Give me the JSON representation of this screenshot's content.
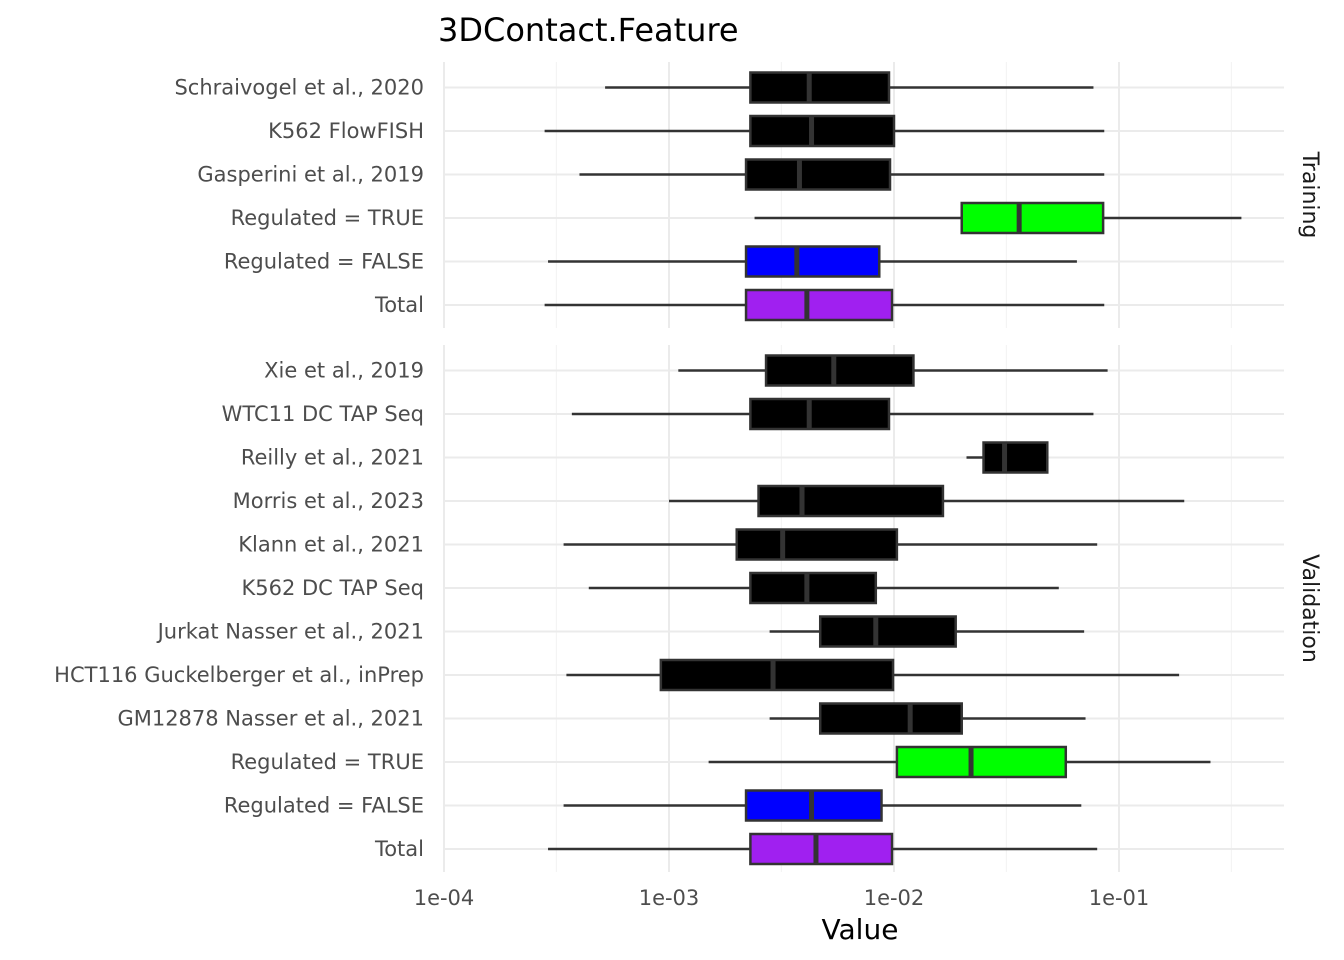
{
  "chart_data": {
    "type": "boxplot",
    "title": "3DContact.Feature",
    "xlabel": "Value",
    "x_scale": "log10",
    "xlim": [
      0.0001,
      0.5
    ],
    "x_ticks": [
      {
        "value": 0.0001,
        "label": "1e-04"
      },
      {
        "value": 0.001,
        "label": "1e-03"
      },
      {
        "value": 0.01,
        "label": "1e-02"
      },
      {
        "value": 0.1,
        "label": "1e-01"
      }
    ],
    "grid": true,
    "facets": [
      {
        "label": "Training",
        "groups": [
          {
            "name": "Schraivogel et al., 2020",
            "color": "#000000",
            "min": 0.00052,
            "q1": 0.0023,
            "median": 0.0042,
            "q3": 0.0095,
            "max": 0.077
          },
          {
            "name": "K562 FlowFISH",
            "color": "#000000",
            "min": 0.00028,
            "q1": 0.0023,
            "median": 0.0043,
            "q3": 0.01,
            "max": 0.086
          },
          {
            "name": "Gasperini et al., 2019",
            "color": "#000000",
            "min": 0.0004,
            "q1": 0.0022,
            "median": 0.0038,
            "q3": 0.0096,
            "max": 0.086
          },
          {
            "name": "Regulated = TRUE",
            "color": "#00ff00",
            "min": 0.0024,
            "q1": 0.02,
            "median": 0.036,
            "q3": 0.085,
            "max": 0.35
          },
          {
            "name": "Regulated = FALSE",
            "color": "#0000ff",
            "min": 0.00029,
            "q1": 0.0022,
            "median": 0.0037,
            "q3": 0.0086,
            "max": 0.065
          },
          {
            "name": "Total",
            "color": "#a020f0",
            "min": 0.00028,
            "q1": 0.0022,
            "median": 0.0041,
            "q3": 0.0098,
            "max": 0.086
          }
        ]
      },
      {
        "label": "Validation",
        "groups": [
          {
            "name": "Xie et al., 2019",
            "color": "#000000",
            "min": 0.0011,
            "q1": 0.0027,
            "median": 0.0054,
            "q3": 0.0122,
            "max": 0.089
          },
          {
            "name": "WTC11 DC TAP Seq",
            "color": "#000000",
            "min": 0.00037,
            "q1": 0.0023,
            "median": 0.0042,
            "q3": 0.0095,
            "max": 0.077
          },
          {
            "name": "Reilly et al., 2021",
            "color": "#000000",
            "min": 0.021,
            "q1": 0.025,
            "median": 0.031,
            "q3": 0.048,
            "max": 0.048
          },
          {
            "name": "Morris et al., 2023",
            "color": "#000000",
            "min": 0.001,
            "q1": 0.0025,
            "median": 0.0039,
            "q3": 0.0165,
            "max": 0.195
          },
          {
            "name": "Klann et al., 2021",
            "color": "#000000",
            "min": 0.00034,
            "q1": 0.002,
            "median": 0.0032,
            "q3": 0.0103,
            "max": 0.08
          },
          {
            "name": "K562 DC TAP Seq",
            "color": "#000000",
            "min": 0.00044,
            "q1": 0.0023,
            "median": 0.0041,
            "q3": 0.0083,
            "max": 0.054
          },
          {
            "name": "Jurkat Nasser et al., 2021",
            "color": "#000000",
            "min": 0.0028,
            "q1": 0.0047,
            "median": 0.0083,
            "q3": 0.0188,
            "max": 0.07
          },
          {
            "name": "HCT116 Guckelberger et al., inPrep",
            "color": "#000000",
            "min": 0.00035,
            "q1": 0.00092,
            "median": 0.0029,
            "q3": 0.0099,
            "max": 0.185
          },
          {
            "name": "GM12878 Nasser et al., 2021",
            "color": "#000000",
            "min": 0.0028,
            "q1": 0.0047,
            "median": 0.0118,
            "q3": 0.02,
            "max": 0.071
          },
          {
            "name": "Regulated = TRUE",
            "color": "#00ff00",
            "min": 0.0015,
            "q1": 0.0103,
            "median": 0.022,
            "q3": 0.058,
            "max": 0.255
          },
          {
            "name": "Regulated = FALSE",
            "color": "#0000ff",
            "min": 0.00034,
            "q1": 0.0022,
            "median": 0.0043,
            "q3": 0.0088,
            "max": 0.068
          },
          {
            "name": "Total",
            "color": "#a020f0",
            "min": 0.00029,
            "q1": 0.0023,
            "median": 0.0045,
            "q3": 0.0098,
            "max": 0.08
          }
        ]
      }
    ]
  }
}
